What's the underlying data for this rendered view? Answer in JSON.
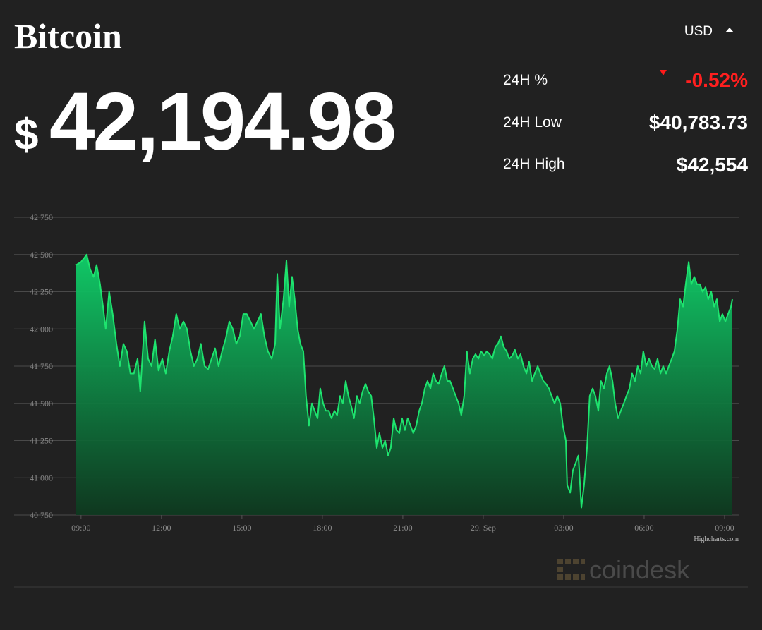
{
  "header": {
    "title": "Bitcoin",
    "currency": "USD",
    "price_symbol": "$",
    "price": "42,194.98",
    "stats": [
      {
        "label": "24H %",
        "value": "-0.52%"
      },
      {
        "label": "24H Low",
        "value": "$40,783.73"
      },
      {
        "label": "24H High",
        "value": "$42,554"
      }
    ]
  },
  "chart_data": {
    "type": "area",
    "color": "#1ee36e",
    "grid": true,
    "credit": "Highcharts.com",
    "xlim": [
      -0.18,
      24.29
    ],
    "ylim": [
      40750,
      42750
    ],
    "xticks": [
      {
        "value": 0,
        "label": "09:00"
      },
      {
        "value": 3,
        "label": "12:00"
      },
      {
        "value": 6,
        "label": "15:00"
      },
      {
        "value": 9,
        "label": "18:00"
      },
      {
        "value": 12,
        "label": "21:00"
      },
      {
        "value": 15,
        "label": "29. Sep"
      },
      {
        "value": 18,
        "label": "03:00"
      },
      {
        "value": 21,
        "label": "06:00"
      },
      {
        "value": 24,
        "label": "09:00"
      }
    ],
    "yticks": [
      {
        "value": 40750,
        "label": "40 750"
      },
      {
        "value": 41000,
        "label": "41 000"
      },
      {
        "value": 41250,
        "label": "41 250"
      },
      {
        "value": 41500,
        "label": "41 500"
      },
      {
        "value": 41750,
        "label": "41 750"
      },
      {
        "value": 42000,
        "label": "42 000"
      },
      {
        "value": 42250,
        "label": "42 250"
      },
      {
        "value": 42500,
        "label": "42 500"
      },
      {
        "value": 42750,
        "label": "42 750"
      }
    ],
    "x": [
      -0.18,
      0,
      0.13,
      0.21,
      0.34,
      0.47,
      0.58,
      0.71,
      0.82,
      0.92,
      1.05,
      1.18,
      1.32,
      1.45,
      1.58,
      1.71,
      1.84,
      1.97,
      2.11,
      2.21,
      2.37,
      2.5,
      2.63,
      2.76,
      2.89,
      3.03,
      3.16,
      3.29,
      3.42,
      3.55,
      3.68,
      3.82,
      3.95,
      4.08,
      4.21,
      4.34,
      4.47,
      4.61,
      4.74,
      4.87,
      5,
      5.13,
      5.26,
      5.39,
      5.53,
      5.66,
      5.79,
      5.92,
      6.05,
      6.18,
      6.32,
      6.45,
      6.58,
      6.71,
      6.84,
      6.97,
      7.11,
      7.24,
      7.32,
      7.42,
      7.55,
      7.66,
      7.76,
      7.87,
      7.97,
      8.08,
      8.18,
      8.29,
      8.39,
      8.5,
      8.61,
      8.71,
      8.82,
      8.92,
      9.03,
      9.13,
      9.24,
      9.34,
      9.45,
      9.55,
      9.66,
      9.76,
      9.87,
      9.97,
      10.08,
      10.18,
      10.29,
      10.39,
      10.5,
      10.61,
      10.71,
      10.82,
      10.92,
      11.03,
      11.13,
      11.24,
      11.34,
      11.45,
      11.55,
      11.66,
      11.76,
      11.87,
      11.97,
      12.08,
      12.18,
      12.29,
      12.39,
      12.5,
      12.61,
      12.71,
      12.82,
      12.92,
      13.03,
      13.13,
      13.24,
      13.34,
      13.45,
      13.55,
      13.66,
      13.76,
      13.87,
      13.97,
      14.08,
      14.18,
      14.29,
      14.39,
      14.5,
      14.61,
      14.71,
      14.82,
      14.92,
      15.03,
      15.13,
      15.24,
      15.34,
      15.45,
      15.55,
      15.66,
      15.76,
      15.87,
      15.97,
      16.08,
      16.18,
      16.29,
      16.39,
      16.5,
      16.61,
      16.71,
      16.82,
      16.92,
      17.03,
      17.13,
      17.24,
      17.34,
      17.45,
      17.55,
      17.66,
      17.76,
      17.87,
      17.97,
      18.08,
      18.13,
      18.24,
      18.34,
      18.45,
      18.55,
      18.66,
      18.76,
      18.87,
      18.97,
      19.08,
      19.18,
      19.29,
      19.39,
      19.5,
      19.61,
      19.71,
      19.82,
      19.92,
      20.03,
      20.13,
      20.24,
      20.34,
      20.45,
      20.55,
      20.66,
      20.76,
      20.87,
      20.97,
      21.08,
      21.18,
      21.29,
      21.39,
      21.5,
      21.61,
      21.71,
      21.82,
      21.92,
      22.03,
      22.13,
      22.24,
      22.34,
      22.45,
      22.55,
      22.66,
      22.76,
      22.87,
      22.97,
      23.08,
      23.18,
      23.29,
      23.39,
      23.5,
      23.61,
      23.71,
      23.82,
      23.92,
      24.03,
      24.13,
      24.24,
      24.29
    ],
    "values": [
      42430,
      42450,
      42480,
      42500,
      42400,
      42350,
      42430,
      42300,
      42150,
      42000,
      42250,
      42100,
      41900,
      41750,
      41900,
      41850,
      41700,
      41700,
      41800,
      41580,
      42050,
      41800,
      41750,
      41930,
      41720,
      41800,
      41700,
      41850,
      41950,
      42100,
      42000,
      42050,
      42000,
      41850,
      41750,
      41800,
      41900,
      41750,
      41730,
      41800,
      41870,
      41750,
      41850,
      41930,
      42050,
      42000,
      41900,
      41950,
      42100,
      42100,
      42050,
      42000,
      42050,
      42100,
      41950,
      41850,
      41800,
      41900,
      42370,
      42000,
      42200,
      42460,
      42150,
      42350,
      42200,
      42000,
      41900,
      41850,
      41550,
      41350,
      41500,
      41450,
      41400,
      41600,
      41500,
      41450,
      41450,
      41400,
      41450,
      41420,
      41550,
      41500,
      41650,
      41550,
      41480,
      41400,
      41550,
      41500,
      41580,
      41630,
      41580,
      41550,
      41400,
      41200,
      41300,
      41200,
      41250,
      41150,
      41200,
      41400,
      41320,
      41300,
      41400,
      41320,
      41400,
      41350,
      41300,
      41350,
      41450,
      41500,
      41600,
      41650,
      41600,
      41700,
      41650,
      41630,
      41700,
      41750,
      41650,
      41650,
      41600,
      41550,
      41500,
      41420,
      41550,
      41850,
      41700,
      41800,
      41830,
      41800,
      41850,
      41820,
      41850,
      41830,
      41800,
      41880,
      41900,
      41950,
      41880,
      41850,
      41800,
      41820,
      41860,
      41800,
      41830,
      41750,
      41700,
      41780,
      41650,
      41700,
      41750,
      41700,
      41650,
      41630,
      41600,
      41550,
      41500,
      41550,
      41500,
      41350,
      41250,
      40950,
      40900,
      41050,
      41100,
      41150,
      40800,
      40950,
      41200,
      41550,
      41600,
      41550,
      41450,
      41650,
      41600,
      41700,
      41750,
      41650,
      41500,
      41400,
      41450,
      41500,
      41550,
      41600,
      41700,
      41650,
      41750,
      41700,
      41850,
      41750,
      41800,
      41750,
      41730,
      41800,
      41700,
      41750,
      41700,
      41750,
      41800,
      41850,
      42000,
      42200,
      42150,
      42300,
      42450,
      42300,
      42350,
      42300,
      42300,
      42250,
      42280,
      42200,
      42250,
      42150,
      42200,
      42050,
      42100,
      42050,
      42100,
      42150,
      42200
    ]
  },
  "footer": {
    "brand": "coindesk"
  }
}
